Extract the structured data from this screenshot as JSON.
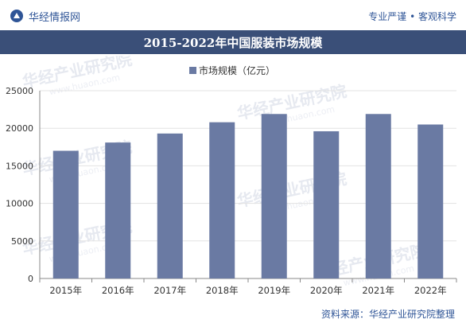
{
  "header": {
    "brand_name": "华经情报网",
    "tagline": "专业严谨 • 客观科学"
  },
  "title": "2015-2022年中国服装市场规模",
  "footer": {
    "source": "资料来源：华经产业研究院整理"
  },
  "watermark": {
    "text_cn": "华经产业研究院",
    "text_url": "www.huaon.com"
  },
  "colors": {
    "bar": "#6a7aa3",
    "title_bar": "#3a4f78",
    "brand": "#2f5597"
  },
  "chart_data": {
    "type": "bar",
    "title": "2015-2022年中国服装市场规模",
    "categories": [
      "2015年",
      "2016年",
      "2017年",
      "2018年",
      "2019年",
      "2020年",
      "2021年",
      "2022年"
    ],
    "series": [
      {
        "name": "市场规模（亿元）",
        "values": [
          17000,
          18100,
          19300,
          20800,
          21900,
          19600,
          21900,
          20500
        ]
      }
    ],
    "ylim": [
      0,
      25000
    ],
    "yticks": [
      "0",
      "5000",
      "10000",
      "15000",
      "20000",
      "25000"
    ],
    "grid": true,
    "legend": "top-center"
  }
}
